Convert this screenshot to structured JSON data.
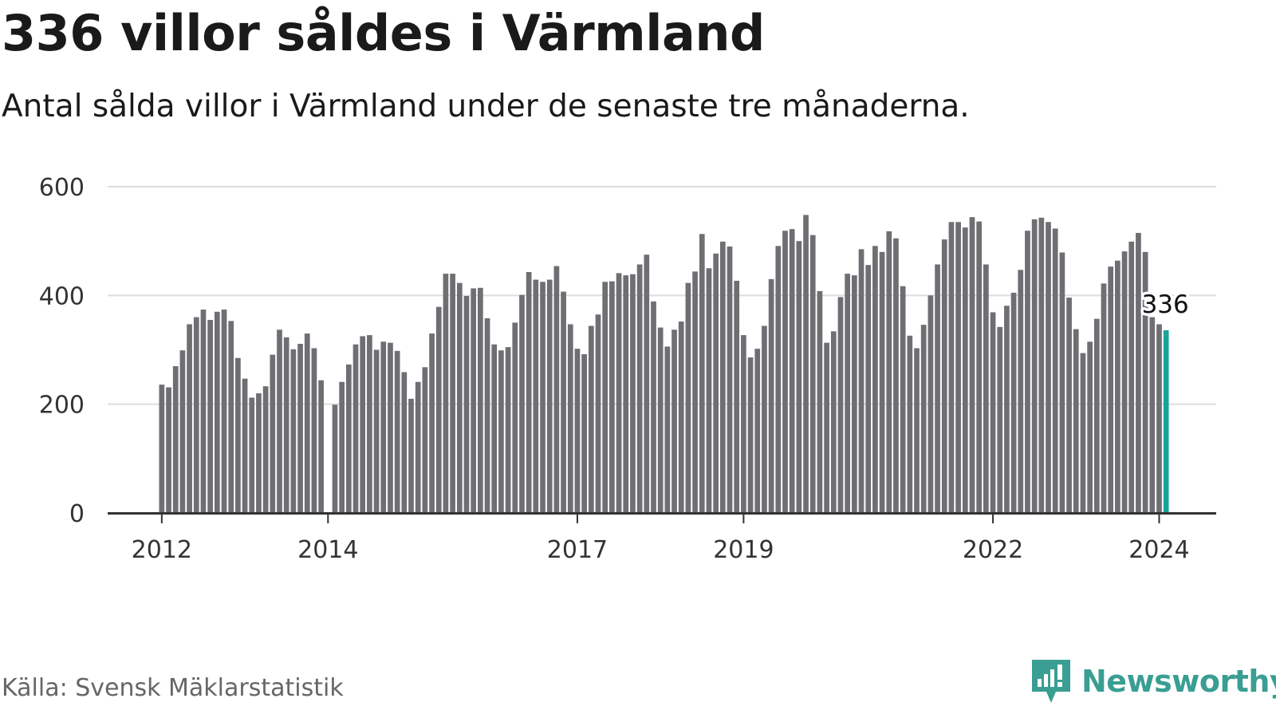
{
  "title": "336 villor såldes i Värmland",
  "subtitle": "Antal sålda villor i Värmland under de senaste tre månaderna.",
  "source": "Källa: Svensk Mäklarstatistik",
  "brand": "Newsworthy",
  "colors": {
    "bar": "#6e6e73",
    "highlight": "#1aa39b",
    "grid": "#dddddd",
    "axis": "#333333",
    "brand": "#3a9e93"
  },
  "chart_data": {
    "type": "bar",
    "title": "336 villor såldes i Värmland",
    "xlabel": "",
    "ylabel": "",
    "ylim": [
      0,
      600
    ],
    "y_ticks": [
      0,
      200,
      400,
      600
    ],
    "x_tick_labels": [
      {
        "label": "2012",
        "index": 0
      },
      {
        "label": "2014",
        "index": 24
      },
      {
        "label": "2017",
        "index": 60
      },
      {
        "label": "2019",
        "index": 84
      },
      {
        "label": "2022",
        "index": 120
      },
      {
        "label": "2024",
        "index": 144
      }
    ],
    "start": "2012-01",
    "frequency": "monthly (rolling three-month total)",
    "values": [
      236,
      231,
      270,
      299,
      347,
      360,
      374,
      355,
      370,
      374,
      353,
      285,
      247,
      212,
      220,
      233,
      291,
      337,
      323,
      301,
      311,
      330,
      303,
      244,
      null,
      199,
      241,
      273,
      310,
      325,
      327,
      300,
      315,
      313,
      298,
      259,
      210,
      241,
      268,
      330,
      379,
      440,
      440,
      423,
      399,
      413,
      414,
      358,
      310,
      299,
      305,
      350,
      401,
      443,
      429,
      425,
      429,
      454,
      407,
      347,
      302,
      292,
      344,
      365,
      425,
      426,
      441,
      437,
      439,
      457,
      475,
      389,
      341,
      306,
      337,
      352,
      423,
      444,
      513,
      450,
      477,
      499,
      490,
      427,
      327,
      286,
      302,
      344,
      430,
      491,
      519,
      522,
      500,
      548,
      511,
      408,
      313,
      334,
      397,
      440,
      437,
      485,
      456,
      491,
      480,
      518,
      505,
      417,
      326,
      303,
      346,
      400,
      457,
      503,
      535,
      535,
      525,
      544,
      536,
      457,
      369,
      342,
      381,
      405,
      447,
      519,
      540,
      543,
      535,
      523,
      479,
      396,
      338,
      294,
      315,
      357,
      422,
      453,
      464,
      481,
      499,
      515,
      480,
      360,
      347,
      336
    ],
    "highlight_index": 145,
    "highlight_label": "336"
  }
}
